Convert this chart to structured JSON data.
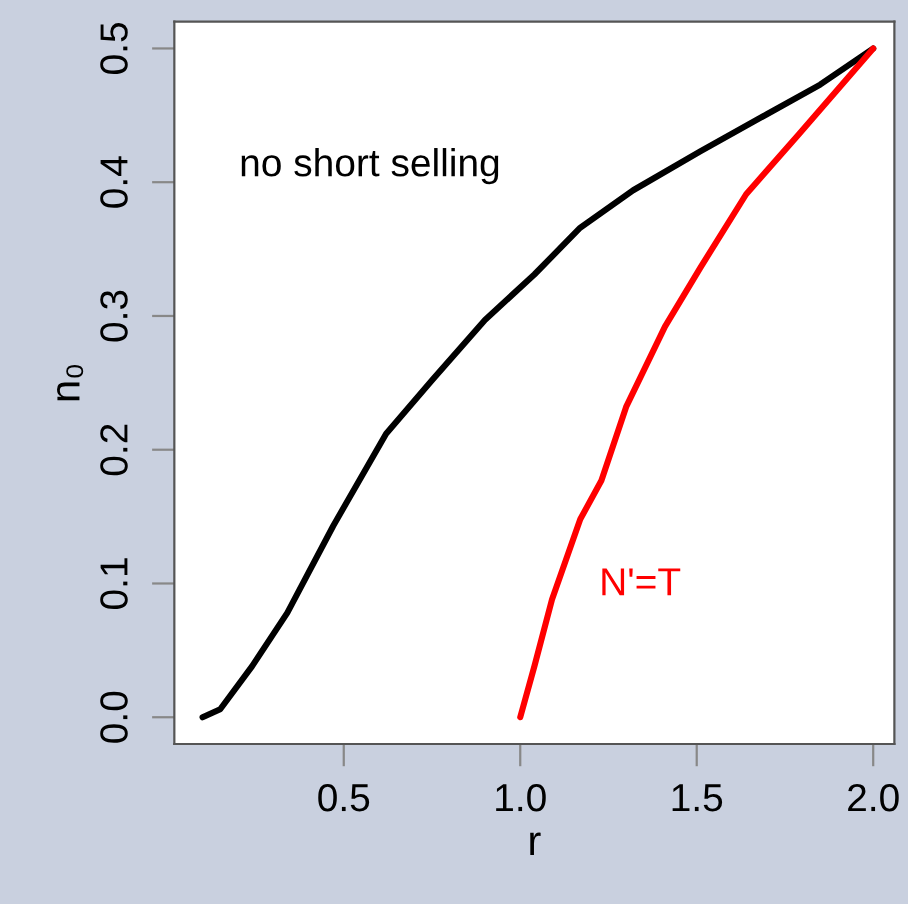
{
  "chart_data": {
    "type": "line",
    "xlabel": "r",
    "ylabel": "n₀",
    "xlim": [
      0.02,
      2.06
    ],
    "ylim": [
      -0.02,
      0.52
    ],
    "xticks": [
      {
        "value": 0.5,
        "label": "0.5"
      },
      {
        "value": 1.0,
        "label": "1.0"
      },
      {
        "value": 1.5,
        "label": "1.5"
      },
      {
        "value": 2.0,
        "label": "2.0"
      }
    ],
    "yticks": [
      {
        "value": 0.0,
        "label": "0.0"
      },
      {
        "value": 0.1,
        "label": "0.1"
      },
      {
        "value": 0.2,
        "label": "0.2"
      },
      {
        "value": 0.3,
        "label": "0.3"
      },
      {
        "value": 0.4,
        "label": "0.4"
      },
      {
        "value": 0.5,
        "label": "0.5"
      }
    ],
    "grid": false,
    "legend": false,
    "series": [
      {
        "name": "no short selling",
        "color": "#000000",
        "x": [
          0.1,
          0.15,
          0.24,
          0.34,
          0.47,
          0.62,
          0.75,
          0.9,
          1.04,
          1.17,
          1.32,
          1.51,
          1.7,
          1.85,
          2.0
        ],
        "values": [
          0.0,
          0.006,
          0.038,
          0.078,
          0.143,
          0.212,
          0.252,
          0.297,
          0.331,
          0.366,
          0.394,
          0.423,
          0.451,
          0.473,
          0.5
        ]
      },
      {
        "name": "N'=T",
        "color": "#ff0000",
        "x": [
          1.0,
          1.04,
          1.09,
          1.17,
          1.23,
          1.3,
          1.41,
          1.51,
          1.64,
          1.79,
          2.0
        ],
        "values": [
          0.0,
          0.038,
          0.088,
          0.148,
          0.177,
          0.232,
          0.292,
          0.336,
          0.391,
          0.436,
          0.5
        ]
      }
    ]
  }
}
